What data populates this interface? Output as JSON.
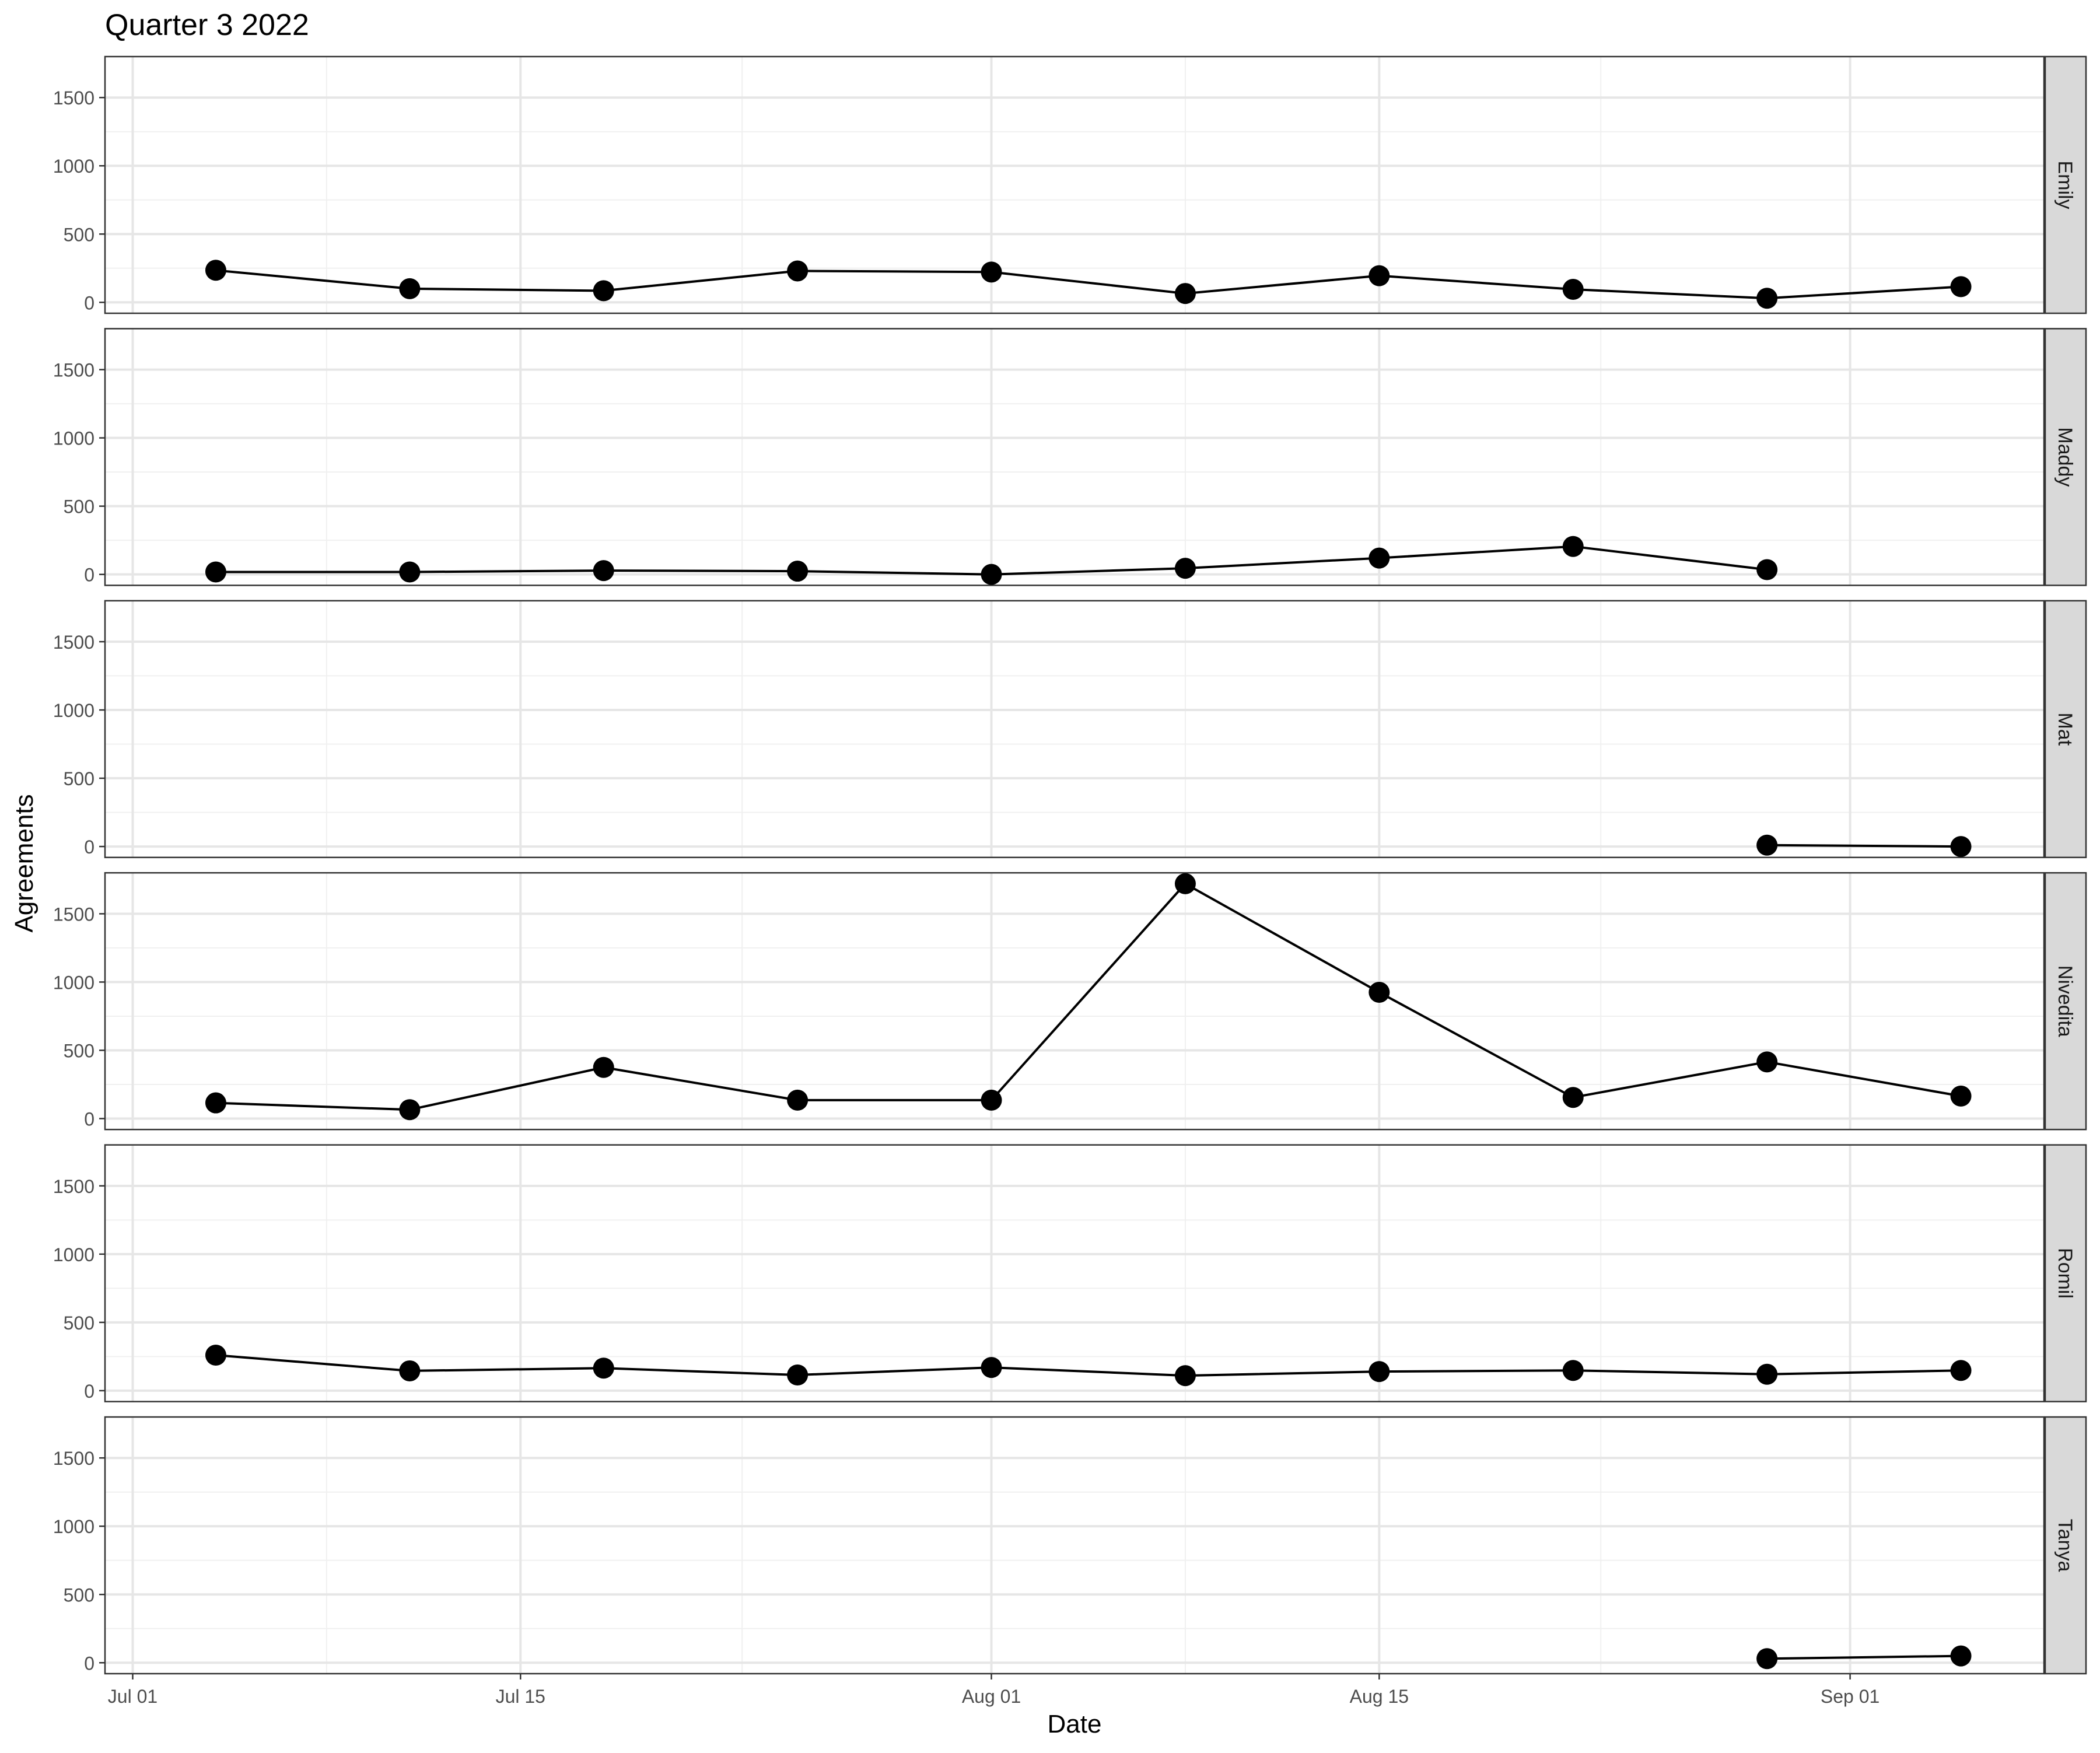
{
  "chart_data": {
    "type": "line",
    "title": "Quarter 3 2022",
    "xlabel": "Date",
    "ylabel": "Agreements",
    "xlim": [
      "2022-06-30",
      "2022-09-08"
    ],
    "ylim": [
      -80,
      1800
    ],
    "x_ticks": [
      {
        "date": "2022-07-01",
        "label": "Jul 01"
      },
      {
        "date": "2022-07-15",
        "label": "Jul 15"
      },
      {
        "date": "2022-08-01",
        "label": "Aug 01"
      },
      {
        "date": "2022-08-15",
        "label": "Aug 15"
      },
      {
        "date": "2022-09-01",
        "label": "Sep 01"
      }
    ],
    "x_minor_grid": [
      "2022-07-08",
      "2022-07-23",
      "2022-08-08",
      "2022-08-23",
      "2022-09-08"
    ],
    "y_ticks": [
      0,
      500,
      1000,
      1500
    ],
    "y_minor_grid": [
      250,
      750,
      1250
    ],
    "grid": true,
    "facets": [
      {
        "name": "Emily",
        "points": [
          {
            "x": "2022-07-04",
            "y": 235
          },
          {
            "x": "2022-07-11",
            "y": 100
          },
          {
            "x": "2022-07-18",
            "y": 85
          },
          {
            "x": "2022-07-25",
            "y": 230
          },
          {
            "x": "2022-08-01",
            "y": 222
          },
          {
            "x": "2022-08-08",
            "y": 65
          },
          {
            "x": "2022-08-15",
            "y": 195
          },
          {
            "x": "2022-08-22",
            "y": 95
          },
          {
            "x": "2022-08-29",
            "y": 30
          },
          {
            "x": "2022-09-05",
            "y": 115
          }
        ]
      },
      {
        "name": "Maddy",
        "points": [
          {
            "x": "2022-07-04",
            "y": 18
          },
          {
            "x": "2022-07-11",
            "y": 18
          },
          {
            "x": "2022-07-18",
            "y": 28
          },
          {
            "x": "2022-07-25",
            "y": 24
          },
          {
            "x": "2022-08-01",
            "y": 0
          },
          {
            "x": "2022-08-08",
            "y": 45
          },
          {
            "x": "2022-08-15",
            "y": 120
          },
          {
            "x": "2022-08-22",
            "y": 205
          },
          {
            "x": "2022-08-29",
            "y": 35
          }
        ]
      },
      {
        "name": "Mat",
        "points": [
          {
            "x": "2022-08-29",
            "y": 10
          },
          {
            "x": "2022-09-05",
            "y": 0
          }
        ]
      },
      {
        "name": "Nivedita",
        "points": [
          {
            "x": "2022-07-04",
            "y": 115
          },
          {
            "x": "2022-07-11",
            "y": 65
          },
          {
            "x": "2022-07-18",
            "y": 375
          },
          {
            "x": "2022-07-25",
            "y": 135
          },
          {
            "x": "2022-08-01",
            "y": 135
          },
          {
            "x": "2022-08-08",
            "y": 1720
          },
          {
            "x": "2022-08-15",
            "y": 925
          },
          {
            "x": "2022-08-22",
            "y": 155
          },
          {
            "x": "2022-08-29",
            "y": 415
          },
          {
            "x": "2022-09-05",
            "y": 165
          }
        ]
      },
      {
        "name": "Romil",
        "points": [
          {
            "x": "2022-07-04",
            "y": 260
          },
          {
            "x": "2022-07-11",
            "y": 145
          },
          {
            "x": "2022-07-18",
            "y": 165
          },
          {
            "x": "2022-07-25",
            "y": 115
          },
          {
            "x": "2022-08-01",
            "y": 170
          },
          {
            "x": "2022-08-08",
            "y": 110
          },
          {
            "x": "2022-08-15",
            "y": 140
          },
          {
            "x": "2022-08-22",
            "y": 148
          },
          {
            "x": "2022-08-29",
            "y": 120
          },
          {
            "x": "2022-09-05",
            "y": 148
          }
        ]
      },
      {
        "name": "Tanya",
        "points": [
          {
            "x": "2022-08-29",
            "y": 30
          },
          {
            "x": "2022-09-05",
            "y": 50
          }
        ]
      }
    ]
  }
}
